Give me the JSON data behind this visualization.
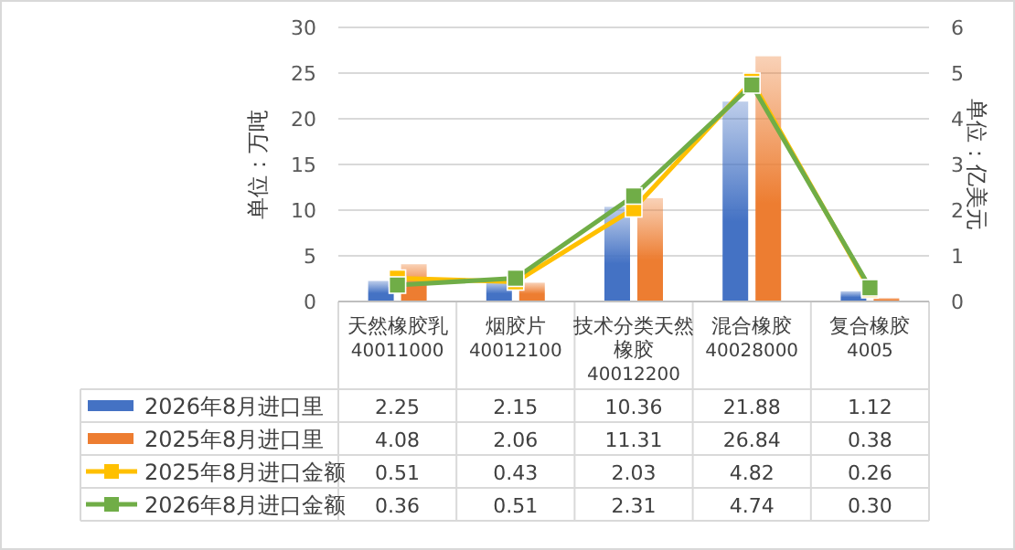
{
  "chart_data": {
    "type": "bar",
    "ylabel": "单位：万吨",
    "y2label": "单位：亿美元",
    "categories": [
      "天然橡胶乳\n40011000",
      "烟胶片\n40012100",
      "技术分类天然橡胶\n40012200",
      "混合橡胶\n40028000",
      "复合橡胶\n4005"
    ],
    "series": [
      {
        "name": "2026年8月进口里",
        "color": "#4472c4",
        "values": [
          2.25,
          2.15,
          10.36,
          21.88,
          1.12
        ],
        "value_labels": [
          "2.25",
          "2.15",
          "10.36",
          "21.88",
          "1.12"
        ]
      },
      {
        "name": "2025年8月进口里",
        "color": "#ed7d31",
        "values": [
          4.08,
          2.06,
          11.31,
          26.84,
          0.38
        ],
        "value_labels": [
          "4.08",
          "2.06",
          "11.31",
          "26.84",
          "0.38"
        ]
      },
      {
        "name": "2025年8月进口金额",
        "type": "line",
        "axis": "y2",
        "color": "#ffc000",
        "values": [
          0.51,
          0.43,
          2.03,
          4.82,
          0.26
        ],
        "value_labels": [
          "0.51",
          "0.43",
          "2.03",
          "4.82",
          "0.26"
        ]
      },
      {
        "name": "2026年8月进口金额",
        "type": "line",
        "axis": "y2",
        "color": "#70ad47",
        "values": [
          0.36,
          0.51,
          2.31,
          4.74,
          0.3
        ],
        "value_labels": [
          "0.36",
          "0.51",
          "2.31",
          "4.74",
          "0.30"
        ]
      }
    ],
    "ylim": [
      0,
      30
    ],
    "yticks": [
      0,
      5,
      10,
      15,
      20,
      25,
      30
    ],
    "y2lim": [
      0,
      6
    ],
    "y2ticks": [
      0,
      1,
      2,
      3,
      4,
      5,
      6
    ],
    "grid": "y",
    "legend": "bottom",
    "marker": "square"
  }
}
